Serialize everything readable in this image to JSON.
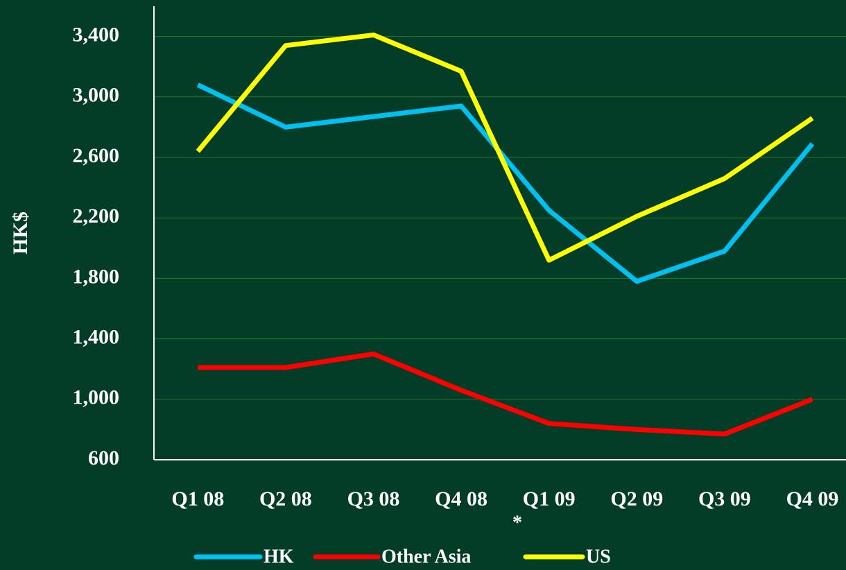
{
  "chart_data": {
    "type": "line",
    "y_label": "HK$",
    "annotation": "*",
    "categories": [
      "Q1 08",
      "Q2 08",
      "Q3 08",
      "Q4 08",
      "Q1 09",
      "Q2 09",
      "Q3 09",
      "Q4 09"
    ],
    "series": [
      {
        "name": "HK",
        "color": "#00c0f0",
        "values": [
          3080,
          2800,
          2870,
          2940,
          2250,
          1780,
          1980,
          2690
        ]
      },
      {
        "name": "Other Asia",
        "color": "#ff0000",
        "values": [
          1210,
          1210,
          1300,
          1060,
          840,
          800,
          770,
          1000
        ]
      },
      {
        "name": "US",
        "color": "#ffff00",
        "values": [
          2640,
          3340,
          3410,
          3170,
          1920,
          2210,
          2460,
          2860
        ]
      }
    ],
    "ylim": [
      600,
      3600
    ],
    "yticks": [
      {
        "value": 600,
        "label": "600"
      },
      {
        "value": 1000,
        "label": "1,000"
      },
      {
        "value": 1400,
        "label": "1,400"
      },
      {
        "value": 1800,
        "label": "1,800"
      },
      {
        "value": 2200,
        "label": "2,200"
      },
      {
        "value": 2600,
        "label": "2,600"
      },
      {
        "value": 3000,
        "label": "3,000"
      },
      {
        "value": 3400,
        "label": "3,400"
      }
    ],
    "grid": true
  }
}
